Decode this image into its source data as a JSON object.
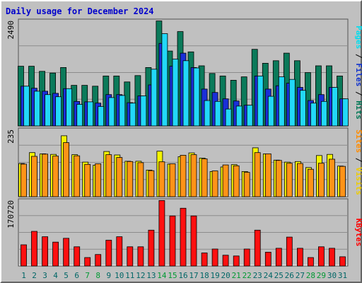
{
  "chart_data": {
    "type": "bar",
    "title": "Daily usage for December 2024",
    "title_color": "#0000cc",
    "categories": [
      "1",
      "2",
      "3",
      "4",
      "5",
      "6",
      "7",
      "8",
      "9",
      "10",
      "11",
      "12",
      "13",
      "14",
      "15",
      "16",
      "17",
      "18",
      "19",
      "20",
      "21",
      "22",
      "23",
      "24",
      "25",
      "26",
      "27",
      "28",
      "29",
      "30",
      "31"
    ],
    "weekend_days": [
      "7",
      "8",
      "14",
      "15",
      "21",
      "22",
      "28",
      "29"
    ],
    "weekday_label_color": "#006666",
    "weekend_label_color": "#009933",
    "grid": true,
    "panels": [
      {
        "name": "pages-files-hits",
        "ymax_label": "2490",
        "ylim": [
          0,
          2490
        ],
        "side_label": [
          {
            "text": "Pages",
            "color": "#00ddee"
          },
          {
            "text": " / ",
            "color": "#000000"
          },
          {
            "text": "Files",
            "color": "#1133cc"
          },
          {
            "text": " / ",
            "color": "#000000"
          },
          {
            "text": "Hits",
            "color": "#007755"
          }
        ],
        "series": [
          {
            "name": "Hits",
            "color": "#0b7a5a",
            "values": [
              1410,
              1410,
              1290,
              1250,
              1380,
              960,
              960,
              940,
              1180,
              1180,
              1040,
              1190,
              1380,
              2480,
              1770,
              2230,
              1750,
              1420,
              1240,
              1180,
              1080,
              1160,
              1810,
              1480,
              1540,
              1720,
              1540,
              1260,
              1420,
              1420,
              1180
            ]
          },
          {
            "name": "Files",
            "color": "#1a2fd8",
            "values": [
              940,
              890,
              820,
              770,
              880,
              580,
              570,
              540,
              740,
              740,
              550,
              710,
              970,
              1950,
              1410,
              1720,
              1380,
              870,
              790,
              640,
              590,
              490,
              1180,
              870,
              950,
              1010,
              910,
              600,
              740,
              910,
              640
            ]
          },
          {
            "name": "Pages",
            "color": "#22d8f8",
            "values": [
              940,
              820,
              740,
              690,
              880,
              510,
              570,
              460,
              670,
              720,
              540,
              710,
              1340,
              2180,
              1580,
              1540,
              1370,
              600,
              580,
              400,
              470,
              490,
              1180,
              700,
              1160,
              1100,
              840,
              540,
              580,
              910,
              640
            ]
          }
        ]
      },
      {
        "name": "visits-sites",
        "ymax_label": "235",
        "ylim": [
          0,
          235
        ],
        "side_label": [
          {
            "text": "Sites",
            "color": "#ff8c00"
          },
          {
            "text": " / ",
            "color": "#000000"
          },
          {
            "text": "Visits",
            "color": "#eecc00"
          }
        ],
        "series": [
          {
            "name": "Visits",
            "color": "#f4f400",
            "values": [
              116,
              154,
              150,
              148,
              213,
              147,
              121,
              110,
              158,
              146,
              124,
              124,
              93,
              159,
              114,
              140,
              153,
              135,
              88,
              104,
              112,
              88,
              171,
              150,
              128,
              121,
              123,
              102,
              144,
              148,
              107
            ]
          },
          {
            "name": "Sites",
            "color": "#ff9318",
            "values": [
              114,
              141,
              149,
              142,
              189,
              143,
              113,
              115,
              147,
              137,
              123,
              119,
              91,
              122,
              115,
              145,
              147,
              132,
              90,
              111,
              108,
              85,
              154,
              150,
              127,
              117,
              116,
              96,
              117,
              131,
              106
            ]
          }
        ]
      },
      {
        "name": "kbytes",
        "ymax_label": "170720",
        "ylim": [
          0,
          170720
        ],
        "side_label": [
          {
            "text": "KBytes",
            "color": "#ff0000"
          }
        ],
        "series": [
          {
            "name": "KBytes",
            "color": "#ff1010",
            "values": [
              55000,
              90000,
              76000,
              62000,
              72000,
              50000,
              22000,
              30000,
              67000,
              76000,
              50000,
              50000,
              93000,
              170000,
              130000,
              150000,
              130000,
              34000,
              44000,
              28000,
              26000,
              44000,
              93000,
              36000,
              46000,
              75000,
              46000,
              22000,
              50000,
              46000,
              24000
            ]
          }
        ]
      }
    ]
  }
}
